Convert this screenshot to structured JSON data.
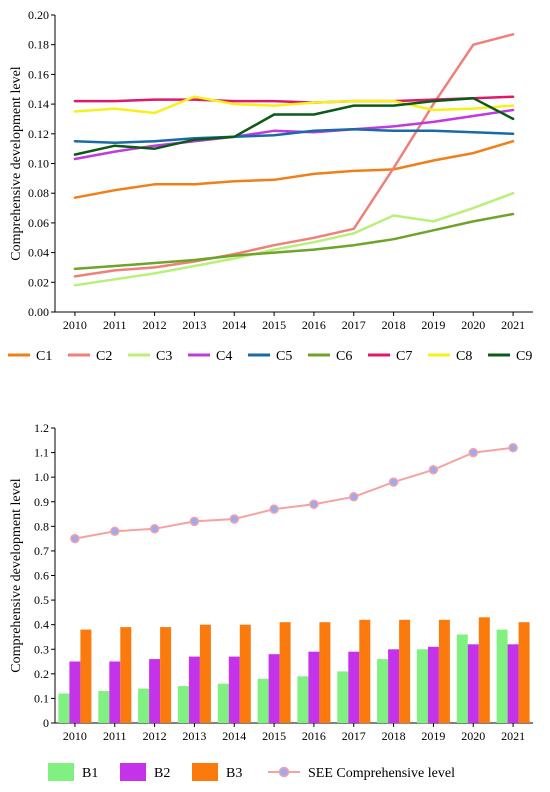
{
  "chart_data": [
    {
      "type": "line",
      "ylabel": "Comprehensive development level",
      "ylim": [
        0,
        0.2
      ],
      "yticks": [
        "0.00",
        "0.02",
        "0.04",
        "0.06",
        "0.08",
        "0.10",
        "0.12",
        "0.14",
        "0.16",
        "0.18",
        "0.20"
      ],
      "categories": [
        "2010",
        "2011",
        "2012",
        "2013",
        "2014",
        "2015",
        "2016",
        "2017",
        "2018",
        "2019",
        "2020",
        "2021"
      ],
      "legend_position": "bottom",
      "series": [
        {
          "name": "C1",
          "color": "#f07f1a",
          "values": [
            0.077,
            0.082,
            0.086,
            0.086,
            0.088,
            0.089,
            0.093,
            0.095,
            0.096,
            0.102,
            0.107,
            0.115
          ]
        },
        {
          "name": "C2",
          "color": "#f07f7a",
          "values": [
            0.024,
            0.028,
            0.03,
            0.034,
            0.039,
            0.045,
            0.05,
            0.056,
            0.097,
            0.14,
            0.18,
            0.187
          ]
        },
        {
          "name": "C3",
          "color": "#b8f07a",
          "values": [
            0.018,
            0.022,
            0.026,
            0.031,
            0.036,
            0.042,
            0.047,
            0.053,
            0.065,
            0.061,
            0.07,
            0.08
          ]
        },
        {
          "name": "C4",
          "color": "#c03ae0",
          "values": [
            0.103,
            0.108,
            0.112,
            0.115,
            0.118,
            0.122,
            0.121,
            0.123,
            0.125,
            0.128,
            0.132,
            0.136
          ]
        },
        {
          "name": "C5",
          "color": "#1a6aa8",
          "values": [
            0.115,
            0.114,
            0.115,
            0.117,
            0.118,
            0.119,
            0.122,
            0.123,
            0.122,
            0.122,
            0.121,
            0.12
          ]
        },
        {
          "name": "C6",
          "color": "#6fa32a",
          "values": [
            0.029,
            0.031,
            0.033,
            0.035,
            0.038,
            0.04,
            0.042,
            0.045,
            0.049,
            0.055,
            0.061,
            0.066
          ]
        },
        {
          "name": "C7",
          "color": "#e0176a",
          "values": [
            0.142,
            0.142,
            0.143,
            0.143,
            0.142,
            0.142,
            0.141,
            0.142,
            0.142,
            0.143,
            0.144,
            0.145
          ]
        },
        {
          "name": "C8",
          "color": "#f4f21a",
          "values": [
            0.135,
            0.137,
            0.134,
            0.145,
            0.14,
            0.139,
            0.141,
            0.142,
            0.142,
            0.136,
            0.137,
            0.139
          ]
        },
        {
          "name": "C9",
          "color": "#0c5a18",
          "values": [
            0.106,
            0.112,
            0.11,
            0.116,
            0.118,
            0.133,
            0.133,
            0.139,
            0.139,
            0.142,
            0.144,
            0.13
          ]
        }
      ]
    },
    {
      "type": "bar",
      "ylabel": "Comprehensive development level",
      "ylim": [
        0,
        1.2
      ],
      "yticks": [
        "0",
        "0.1",
        "0.2",
        "0.3",
        "0.4",
        "0.5",
        "0.6",
        "0.7",
        "0.8",
        "0.9",
        "1.0",
        "1.1",
        "1.2"
      ],
      "categories": [
        "2010",
        "2011",
        "2012",
        "2013",
        "2014",
        "2015",
        "2016",
        "2017",
        "2018",
        "2019",
        "2020",
        "2021"
      ],
      "legend_position": "bottom",
      "series": [
        {
          "name": "B1",
          "kind": "bar",
          "color": "#80f080",
          "values": [
            0.12,
            0.13,
            0.14,
            0.15,
            0.16,
            0.18,
            0.19,
            0.21,
            0.26,
            0.3,
            0.36,
            0.38
          ]
        },
        {
          "name": "B2",
          "kind": "bar",
          "color": "#c432ea",
          "values": [
            0.25,
            0.25,
            0.26,
            0.27,
            0.27,
            0.28,
            0.29,
            0.29,
            0.3,
            0.31,
            0.32,
            0.32
          ]
        },
        {
          "name": "B3",
          "kind": "bar",
          "color": "#fb7a0e",
          "values": [
            0.38,
            0.39,
            0.39,
            0.4,
            0.4,
            0.41,
            0.41,
            0.42,
            0.42,
            0.42,
            0.43,
            0.41
          ]
        },
        {
          "name": "SEE Comprehensive level",
          "kind": "line",
          "color": "#f4a3a0",
          "marker_color": "#a0a8f0",
          "values": [
            0.75,
            0.78,
            0.79,
            0.82,
            0.83,
            0.87,
            0.89,
            0.92,
            0.98,
            1.03,
            1.1,
            1.12
          ]
        }
      ]
    }
  ]
}
